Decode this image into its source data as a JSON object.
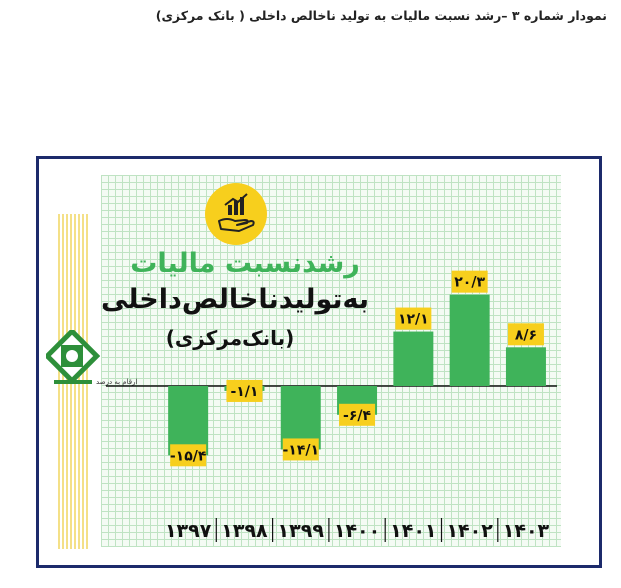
{
  "caption": "نمودار شماره ۳ –رشد نسبت مالیات به تولید ناخالص داخلی ( بانک مرکزی)",
  "title_line1": "رشدنسبت مالیات",
  "title_line2": "به‌تولیدناخالص‌داخلی",
  "title_line3": "(بانک‌مرکزی)",
  "unit_note": "ارقام به درصد",
  "colors": {
    "bar": "#3fb35a",
    "label_bg": "#f7cf1d",
    "frame": "#1c2a6b",
    "grid": "#bfe3c3"
  },
  "chart_data": {
    "type": "bar",
    "categories": [
      "۱۳۹۷",
      "۱۳۹۸",
      "۱۳۹۹",
      "۱۴۰۰",
      "۱۴۰۱",
      "۱۴۰۲",
      "۱۴۰۳"
    ],
    "values": [
      -15.4,
      -1.1,
      -14.1,
      -6.4,
      12.1,
      20.3,
      8.6
    ],
    "value_labels": [
      "-۱۵/۴",
      "-۱/۱",
      "-۱۴/۱",
      "-۶/۴",
      "۱۲/۱",
      "۲۰/۳",
      "۸/۶"
    ],
    "ylabel": "ارقام به درصد",
    "grid": true
  }
}
